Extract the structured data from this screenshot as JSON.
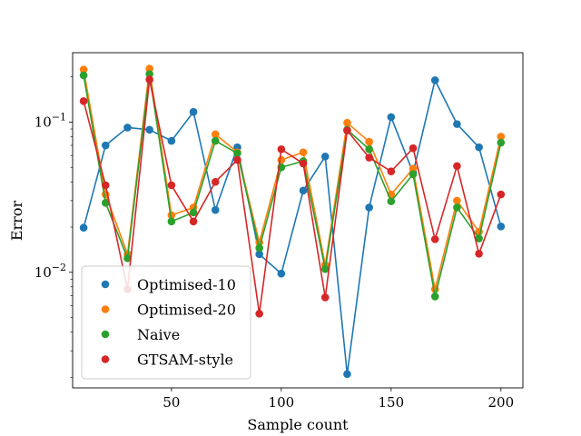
{
  "chart_data": {
    "type": "line",
    "title": "",
    "xlabel": "Sample count",
    "ylabel": "Error",
    "x": [
      10,
      20,
      30,
      40,
      50,
      60,
      70,
      80,
      90,
      100,
      110,
      120,
      130,
      140,
      150,
      160,
      170,
      180,
      190,
      200
    ],
    "xlim": [
      5,
      210
    ],
    "ylim": [
      0.0017,
      0.29
    ],
    "yscale": "log",
    "x_ticks": [
      50,
      100,
      150,
      200
    ],
    "y_ticks": [
      {
        "value": 0.01,
        "base": "10",
        "exp": "−2"
      },
      {
        "value": 0.1,
        "base": "10",
        "exp": "−1"
      }
    ],
    "grid": false,
    "legend_position": "lower-left",
    "series": [
      {
        "name": "Optimised-10",
        "color": "#1f77b4",
        "values": [
          0.0198,
          0.07,
          0.092,
          0.089,
          0.075,
          0.117,
          0.026,
          0.068,
          0.0132,
          0.0098,
          0.035,
          0.059,
          0.0021,
          0.027,
          0.108,
          0.046,
          0.19,
          0.097,
          0.068,
          0.0202
        ]
      },
      {
        "name": "Optimised-20",
        "color": "#ff7f0e",
        "values": [
          0.224,
          0.033,
          0.0132,
          0.227,
          0.024,
          0.027,
          0.083,
          0.063,
          0.0158,
          0.056,
          0.063,
          0.0112,
          0.099,
          0.074,
          0.033,
          0.049,
          0.0077,
          0.03,
          0.0186,
          0.08
        ]
      },
      {
        "name": "Naive",
        "color": "#2ca02c",
        "values": [
          0.205,
          0.029,
          0.0124,
          0.209,
          0.0218,
          0.025,
          0.075,
          0.062,
          0.0145,
          0.05,
          0.055,
          0.0105,
          0.089,
          0.066,
          0.0297,
          0.045,
          0.0069,
          0.027,
          0.0168,
          0.073
        ]
      },
      {
        "name": "GTSAM-style",
        "color": "#d62728",
        "values": [
          0.138,
          0.038,
          0.0077,
          0.192,
          0.038,
          0.0218,
          0.04,
          0.056,
          0.0053,
          0.066,
          0.053,
          0.0068,
          0.088,
          0.058,
          0.047,
          0.067,
          0.0166,
          0.051,
          0.0133,
          0.033
        ]
      }
    ]
  }
}
